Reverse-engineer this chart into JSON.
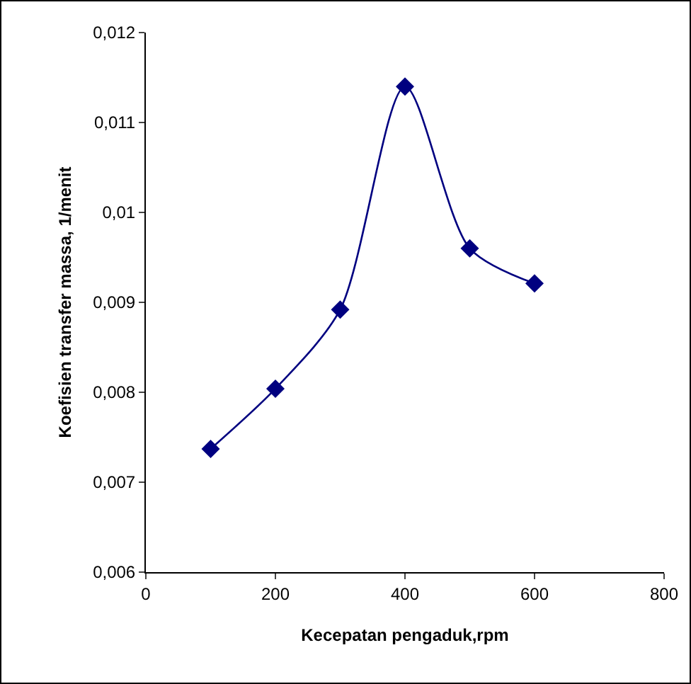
{
  "chart_data": {
    "type": "line",
    "xlabel": "Kecepatan pengaduk,rpm",
    "ylabel": "Koefisien transfer massa, 1/menit",
    "x": [
      100,
      200,
      300,
      400,
      500,
      600
    ],
    "series": [
      {
        "color": "#000080",
        "values": [
          0.00737,
          0.00804,
          0.00892,
          0.0114,
          0.0096,
          0.00921
        ]
      }
    ],
    "xlim": [
      0,
      800
    ],
    "xticks": [
      0,
      200,
      400,
      600,
      800
    ],
    "ylim": [
      0.006,
      0.012
    ],
    "yticks": [
      {
        "value": 0.006,
        "label": "0,006"
      },
      {
        "value": 0.007,
        "label": "0,007"
      },
      {
        "value": 0.008,
        "label": "0,008"
      },
      {
        "value": 0.009,
        "label": "0,009"
      },
      {
        "value": 0.01,
        "label": "0,01"
      },
      {
        "value": 0.011,
        "label": "0,011"
      },
      {
        "value": 0.012,
        "label": "0,012"
      }
    ],
    "grid": false,
    "legend": false,
    "marker": "diamond",
    "line_style": "solid"
  }
}
